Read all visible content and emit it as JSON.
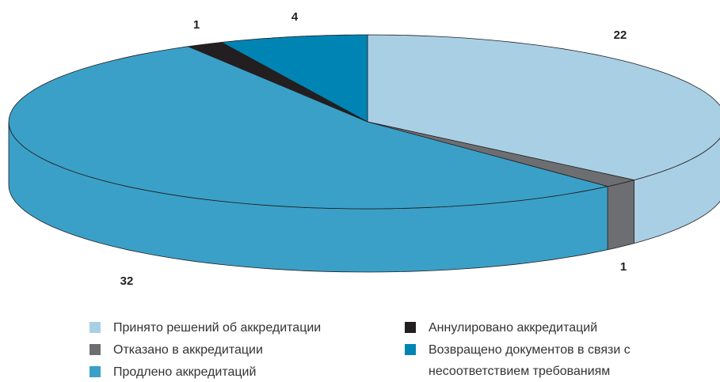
{
  "chart_data": {
    "type": "pie3d",
    "categories": [
      "Принято решений об аккредитации",
      "Отказано в аккредитации",
      "Продлено аккредитаций",
      "Аннулировано аккредитаций",
      "Возвращено документов в связи с несоответствием требованиям"
    ],
    "values": [
      22,
      1,
      32,
      1,
      4
    ],
    "colors": [
      "#a9cfe4",
      "#6d6e71",
      "#3aa0c8",
      "#231f20",
      "#0084b4"
    ]
  }
}
